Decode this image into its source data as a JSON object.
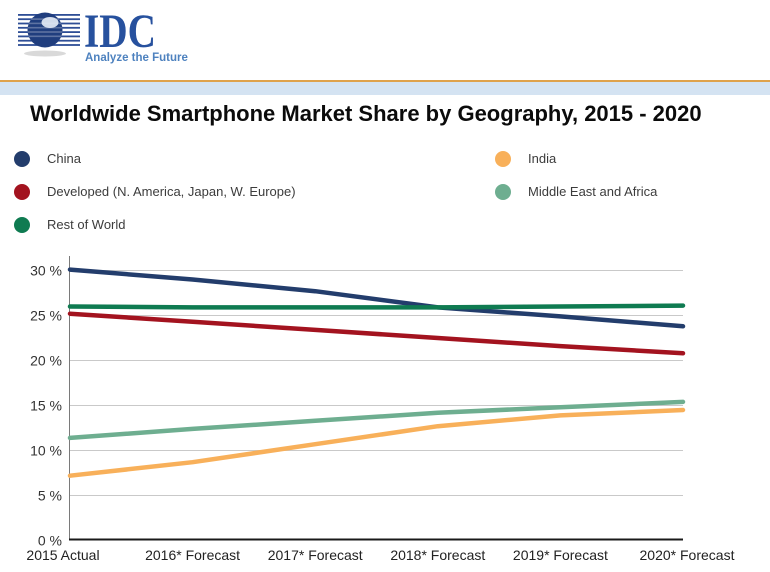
{
  "header": {
    "logo_text": "IDC",
    "logo_tagline": "Analyze the Future",
    "logo_text_color": "#27519E",
    "logo_tagline_color": "#4E82BF",
    "rule_orange_color": "#DFA24B",
    "band_blue_color": "#D4E3F2"
  },
  "title": "Worldwide Smartphone Market Share by Geography, 2015 - 2020",
  "legend": {
    "items": [
      {
        "label": "China",
        "color": "#233D6C"
      },
      {
        "label": "Developed (N. America, Japan, W. Europe)",
        "color": "#A3131F"
      },
      {
        "label": "Rest of World",
        "color": "#0F7B51"
      },
      {
        "label": "India",
        "color": "#F8B05A"
      },
      {
        "label": "Middle East and Africa",
        "color": "#6EAE90"
      }
    ]
  },
  "chart_data": {
    "type": "line",
    "title": "Worldwide Smartphone Market Share by Geography, 2015 - 2020",
    "categories": [
      "2015 Actual",
      "2016* Forecast",
      "2017* Forecast",
      "2018* Forecast",
      "2019* Forecast",
      "2020* Forecast"
    ],
    "series": [
      {
        "name": "China",
        "color": "#233D6C",
        "values": [
          30.1,
          29.0,
          27.7,
          25.9,
          24.9,
          23.8
        ]
      },
      {
        "name": "Developed (N. America, Japan, W. Europe)",
        "color": "#A3131F",
        "values": [
          25.2,
          24.3,
          23.4,
          22.5,
          21.6,
          20.8
        ]
      },
      {
        "name": "India",
        "color": "#F8B05A",
        "values": [
          7.2,
          8.7,
          10.7,
          12.7,
          13.9,
          14.5
        ]
      },
      {
        "name": "Middle East and Africa",
        "color": "#6EAE90",
        "values": [
          11.4,
          12.4,
          13.3,
          14.2,
          14.8,
          15.4
        ]
      },
      {
        "name": "Rest of World",
        "color": "#0F7B51",
        "values": [
          26.0,
          25.9,
          25.9,
          25.9,
          26.0,
          26.1
        ]
      }
    ],
    "xlabel": "",
    "ylabel": "",
    "yticks": [
      0,
      5,
      10,
      15,
      20,
      25,
      30
    ],
    "ytick_labels": [
      "0 %",
      "5 %",
      "10 %",
      "15 %",
      "20 %",
      "25 %",
      "30 %"
    ],
    "ylim": [
      0,
      31.5
    ],
    "grid": true,
    "gridline_color": "#C9C9C9",
    "axis_color": "#1A1A1A",
    "legend_position": "top-two-columns"
  }
}
